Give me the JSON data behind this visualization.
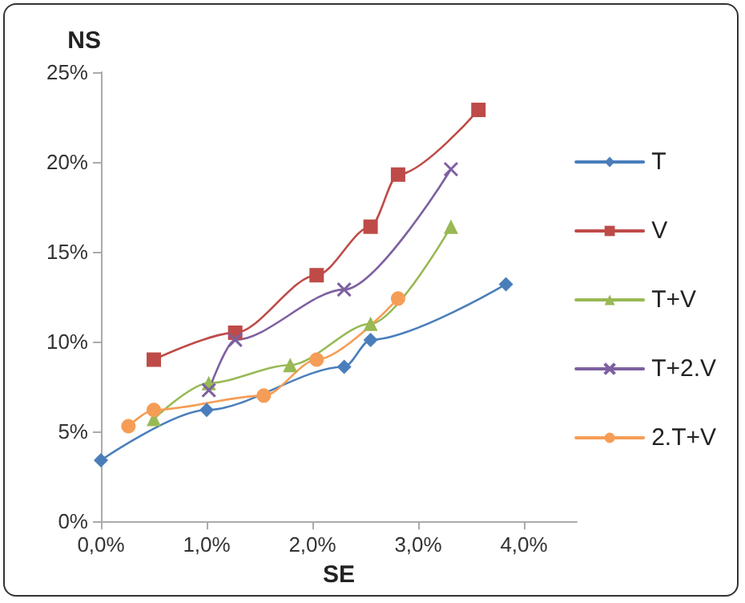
{
  "chart_data": {
    "type": "line",
    "xlabel": "SE",
    "ylabel": "NS",
    "xlim": [
      0,
      4.5
    ],
    "ylim": [
      0,
      25
    ],
    "xticks": [
      {
        "value": 0,
        "label": "0,0%"
      },
      {
        "value": 1,
        "label": "1,0%"
      },
      {
        "value": 2,
        "label": "2,0%"
      },
      {
        "value": 3,
        "label": "3,0%"
      },
      {
        "value": 4,
        "label": "4,0%"
      }
    ],
    "yticks": [
      {
        "value": 0,
        "label": "0%"
      },
      {
        "value": 5,
        "label": "5%"
      },
      {
        "value": 10,
        "label": "10%"
      },
      {
        "value": 15,
        "label": "15%"
      },
      {
        "value": 20,
        "label": "20%"
      },
      {
        "value": 25,
        "label": "25%"
      }
    ],
    "grid": false,
    "legend": "right",
    "line_style": "solid",
    "series": [
      {
        "name": "T",
        "color": "#4a7ebb",
        "marker": "diamond",
        "x": [
          0,
          1.0,
          2.3,
          2.55,
          3.83
        ],
        "values": [
          3.4,
          6.2,
          8.6,
          10.1,
          13.2
        ]
      },
      {
        "name": "V",
        "color": "#be4b48",
        "marker": "square",
        "x": [
          0.5,
          1.27,
          2.04,
          2.55,
          2.81,
          3.57
        ],
        "values": [
          9.0,
          10.5,
          13.7,
          16.4,
          19.3,
          22.9
        ]
      },
      {
        "name": "T+V",
        "color": "#98b954",
        "marker": "triangle",
        "x": [
          0.5,
          1.02,
          1.79,
          2.55,
          3.31
        ],
        "values": [
          5.7,
          7.7,
          8.7,
          11.0,
          16.4
        ]
      },
      {
        "name": "T+2.V",
        "color": "#7d60a0",
        "marker": "cross",
        "x": [
          1.02,
          1.27,
          2.3,
          3.31
        ],
        "values": [
          7.3,
          10.1,
          12.9,
          19.6
        ]
      },
      {
        "name": "2.T+V",
        "color": "#f59d56",
        "marker": "circle",
        "x": [
          0.26,
          0.5,
          1.54,
          2.04,
          2.81
        ],
        "values": [
          5.3,
          6.2,
          7.0,
          9.0,
          12.4
        ]
      }
    ]
  }
}
